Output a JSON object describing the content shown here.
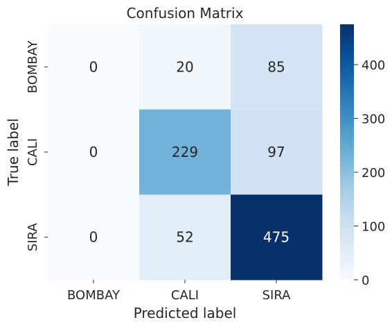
{
  "chart_data": {
    "type": "heatmap",
    "title": "Confusion Matrix",
    "xlabel": "Predicted label",
    "ylabel": "True label",
    "x_categories": [
      "BOMBAY",
      "CALI",
      "SIRA"
    ],
    "y_categories": [
      "BOMBAY",
      "CALI",
      "SIRA"
    ],
    "values": [
      [
        0,
        20,
        85
      ],
      [
        0,
        229,
        97
      ],
      [
        0,
        52,
        475
      ]
    ],
    "colormap": "Blues",
    "colorbar": {
      "range": [
        0,
        475
      ],
      "ticks": [
        0,
        100,
        200,
        300,
        400
      ],
      "tick_labels": [
        "0",
        "100",
        "200",
        "300",
        "400"
      ]
    },
    "grid": false,
    "legend": "none"
  }
}
